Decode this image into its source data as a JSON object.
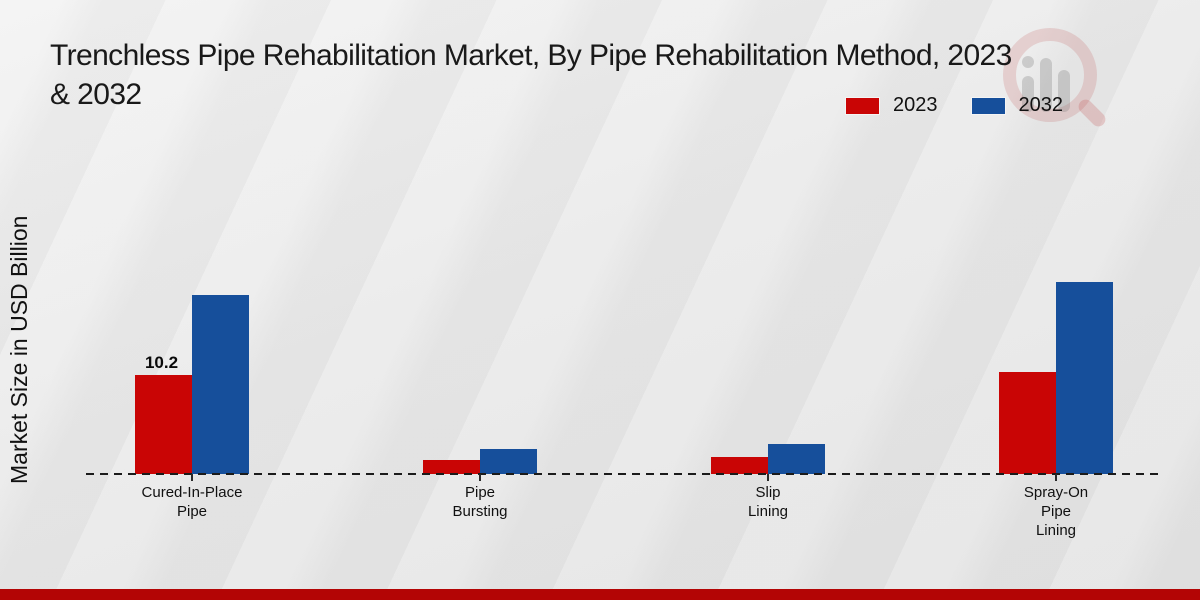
{
  "title": {
    "line1": "Trenchless Pipe Rehabilitation Market, By Pipe Rehabilitation Method, 2023",
    "line2": "& 2032"
  },
  "legend": {
    "items": [
      {
        "label": "2023",
        "color": "#c90505"
      },
      {
        "label": "2032",
        "color": "#164f9b"
      }
    ]
  },
  "y_axis": {
    "label": "Market Size in USD Billion"
  },
  "watermark_icon": "magnifier-bar-chart-brand-logo",
  "footer": {
    "bar_color": "#b30505"
  },
  "chart_data": {
    "type": "bar",
    "title": "Trenchless Pipe Rehabilitation Market, By Pipe Rehabilitation Method, 2023 & 2032",
    "ylabel": "Market Size in USD Billion",
    "xlabel": "",
    "unit": "USD Billion",
    "categories": [
      "Cured-In-Place Pipe",
      "Pipe Bursting",
      "Slip Lining",
      "Spray-On Pipe Lining"
    ],
    "category_label_lines": [
      [
        "Cured-In-Place",
        "Pipe"
      ],
      [
        "Pipe",
        "Bursting"
      ],
      [
        "Slip",
        "Lining"
      ],
      [
        "Spray-On",
        "Pipe",
        "Lining"
      ]
    ],
    "series": [
      {
        "name": "2023",
        "color": "#c90505",
        "values": [
          10.2,
          1.4,
          1.8,
          10.5
        ]
      },
      {
        "name": "2032",
        "color": "#164f9b",
        "values": [
          18.5,
          2.6,
          3.1,
          19.8
        ]
      }
    ],
    "data_labels": [
      {
        "series_index": 0,
        "category_index": 0,
        "text": "10.2"
      }
    ],
    "ylim": [
      0,
      21
    ],
    "grid": false,
    "baseline_style": "dashed",
    "legend_position": "top-right"
  }
}
